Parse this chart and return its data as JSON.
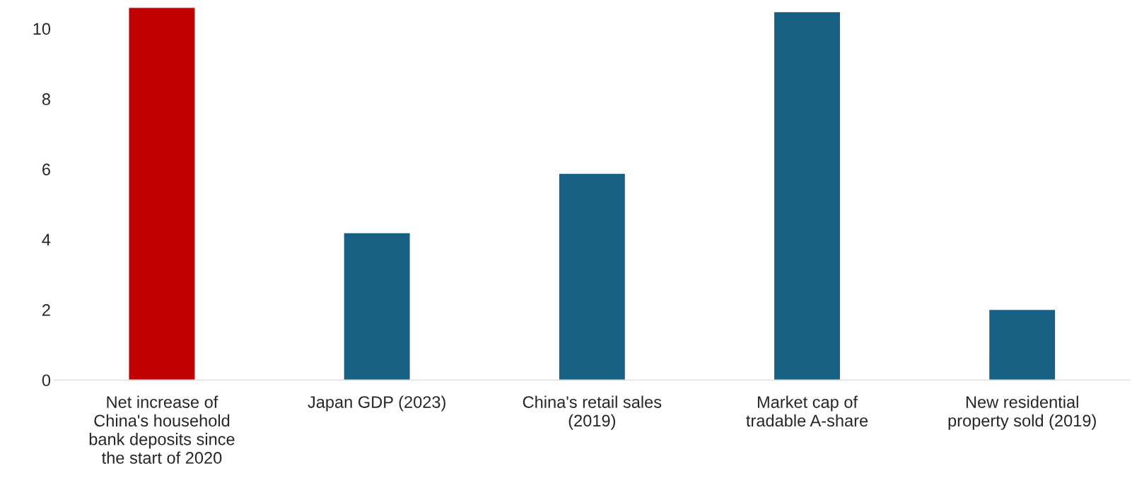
{
  "chart_data": {
    "type": "bar",
    "categories": [
      "Net increase of China's household bank deposits since the start of 2020",
      "Japan GDP (2023)",
      "China's retail sales (2019)",
      "Market cap of tradable A-share",
      "New residential property sold (2019)"
    ],
    "values": [
      10.6,
      4.19,
      5.88,
      10.48,
      2.01
    ],
    "colors": [
      "#c00000",
      "#176084",
      "#176084",
      "#176084",
      "#176084"
    ],
    "ylim": [
      0,
      10.6
    ],
    "yticks": [
      0,
      2,
      4,
      6,
      8,
      10
    ],
    "grid": false,
    "legend": false
  }
}
